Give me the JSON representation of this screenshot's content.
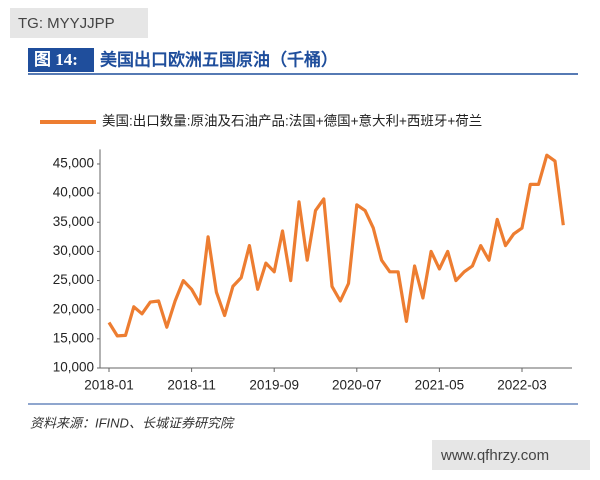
{
  "watermark_top": "TG: MYYJJPP",
  "watermark_bottom": "www.qfhrzy.com",
  "chart_data": {
    "type": "line",
    "figure_label": "图 14:",
    "title": "美国出口欧洲五国原油（千桶）",
    "source": "资料来源：IFIND、长城证券研究院",
    "categories": [
      "2018-01",
      null,
      null,
      null,
      null,
      null,
      null,
      null,
      null,
      null,
      "2018-11",
      null,
      null,
      null,
      null,
      null,
      null,
      null,
      null,
      null,
      "2019-09",
      null,
      null,
      null,
      null,
      null,
      null,
      null,
      null,
      null,
      "2020-07",
      null,
      null,
      null,
      null,
      null,
      null,
      null,
      null,
      null,
      "2021-05",
      null,
      null,
      null,
      null,
      null,
      null,
      null,
      null,
      null,
      "2022-03",
      null,
      null,
      null,
      null,
      null
    ],
    "series": [
      {
        "name": "美国:出口数量:原油及石油产品:法国+德国+意大利+西班牙+荷兰",
        "color": "#ed7d31",
        "values": [
          17800,
          15500,
          15600,
          20500,
          19300,
          21300,
          21500,
          17000,
          21500,
          25000,
          23500,
          21000,
          32500,
          23000,
          19000,
          24000,
          25500,
          31000,
          23500,
          28000,
          26500,
          33500,
          25000,
          38500,
          28500,
          37000,
          39000,
          24000,
          21500,
          24500,
          38000,
          37000,
          34000,
          28500,
          26500,
          26500,
          18000,
          27500,
          22000,
          30000,
          27000,
          30000,
          25000,
          26500,
          27500,
          31000,
          28500,
          35500,
          31000,
          33000,
          34000,
          41500,
          41500,
          46500,
          45500,
          34500
        ]
      }
    ],
    "ylim": [
      10000,
      47500
    ],
    "yticks": [
      {
        "value": 10000,
        "label": "10,000"
      },
      {
        "value": 15000,
        "label": "15,000"
      },
      {
        "value": 20000,
        "label": "20,000"
      },
      {
        "value": 25000,
        "label": "25,000"
      },
      {
        "value": 30000,
        "label": "30,000"
      },
      {
        "value": 35000,
        "label": "35,000"
      },
      {
        "value": 40000,
        "label": "40,000"
      },
      {
        "value": 45000,
        "label": "45,000"
      }
    ],
    "grid": false
  }
}
